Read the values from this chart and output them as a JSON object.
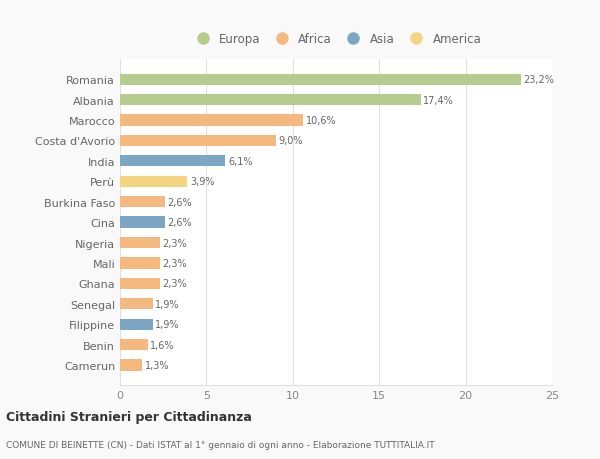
{
  "countries": [
    "Romania",
    "Albania",
    "Marocco",
    "Costa d'Avorio",
    "India",
    "Perù",
    "Burkina Faso",
    "Cina",
    "Nigeria",
    "Mali",
    "Ghana",
    "Senegal",
    "Filippine",
    "Benin",
    "Camerun"
  ],
  "values": [
    23.2,
    17.4,
    10.6,
    9.0,
    6.1,
    3.9,
    2.6,
    2.6,
    2.3,
    2.3,
    2.3,
    1.9,
    1.9,
    1.6,
    1.3
  ],
  "continents": [
    "Europa",
    "Europa",
    "Africa",
    "Africa",
    "Asia",
    "America",
    "Africa",
    "Asia",
    "Africa",
    "Africa",
    "Africa",
    "Africa",
    "Asia",
    "Africa",
    "Africa"
  ],
  "colors": {
    "Europa": "#b5cc8e",
    "Africa": "#f5b97f",
    "Asia": "#7ba7c4",
    "America": "#f5d57f"
  },
  "legend_order": [
    "Europa",
    "Africa",
    "Asia",
    "America"
  ],
  "title": "Cittadini Stranieri per Cittadinanza",
  "subtitle": "COMUNE DI BEINETTE (CN) - Dati ISTAT al 1° gennaio di ogni anno - Elaborazione TUTTITALIA.IT",
  "xlim": [
    0,
    25
  ],
  "xticks": [
    0,
    5,
    10,
    15,
    20,
    25
  ],
  "background_color": "#f9f9f9",
  "plot_background_color": "#ffffff",
  "grid_color": "#e0e0e0",
  "bar_height": 0.55
}
